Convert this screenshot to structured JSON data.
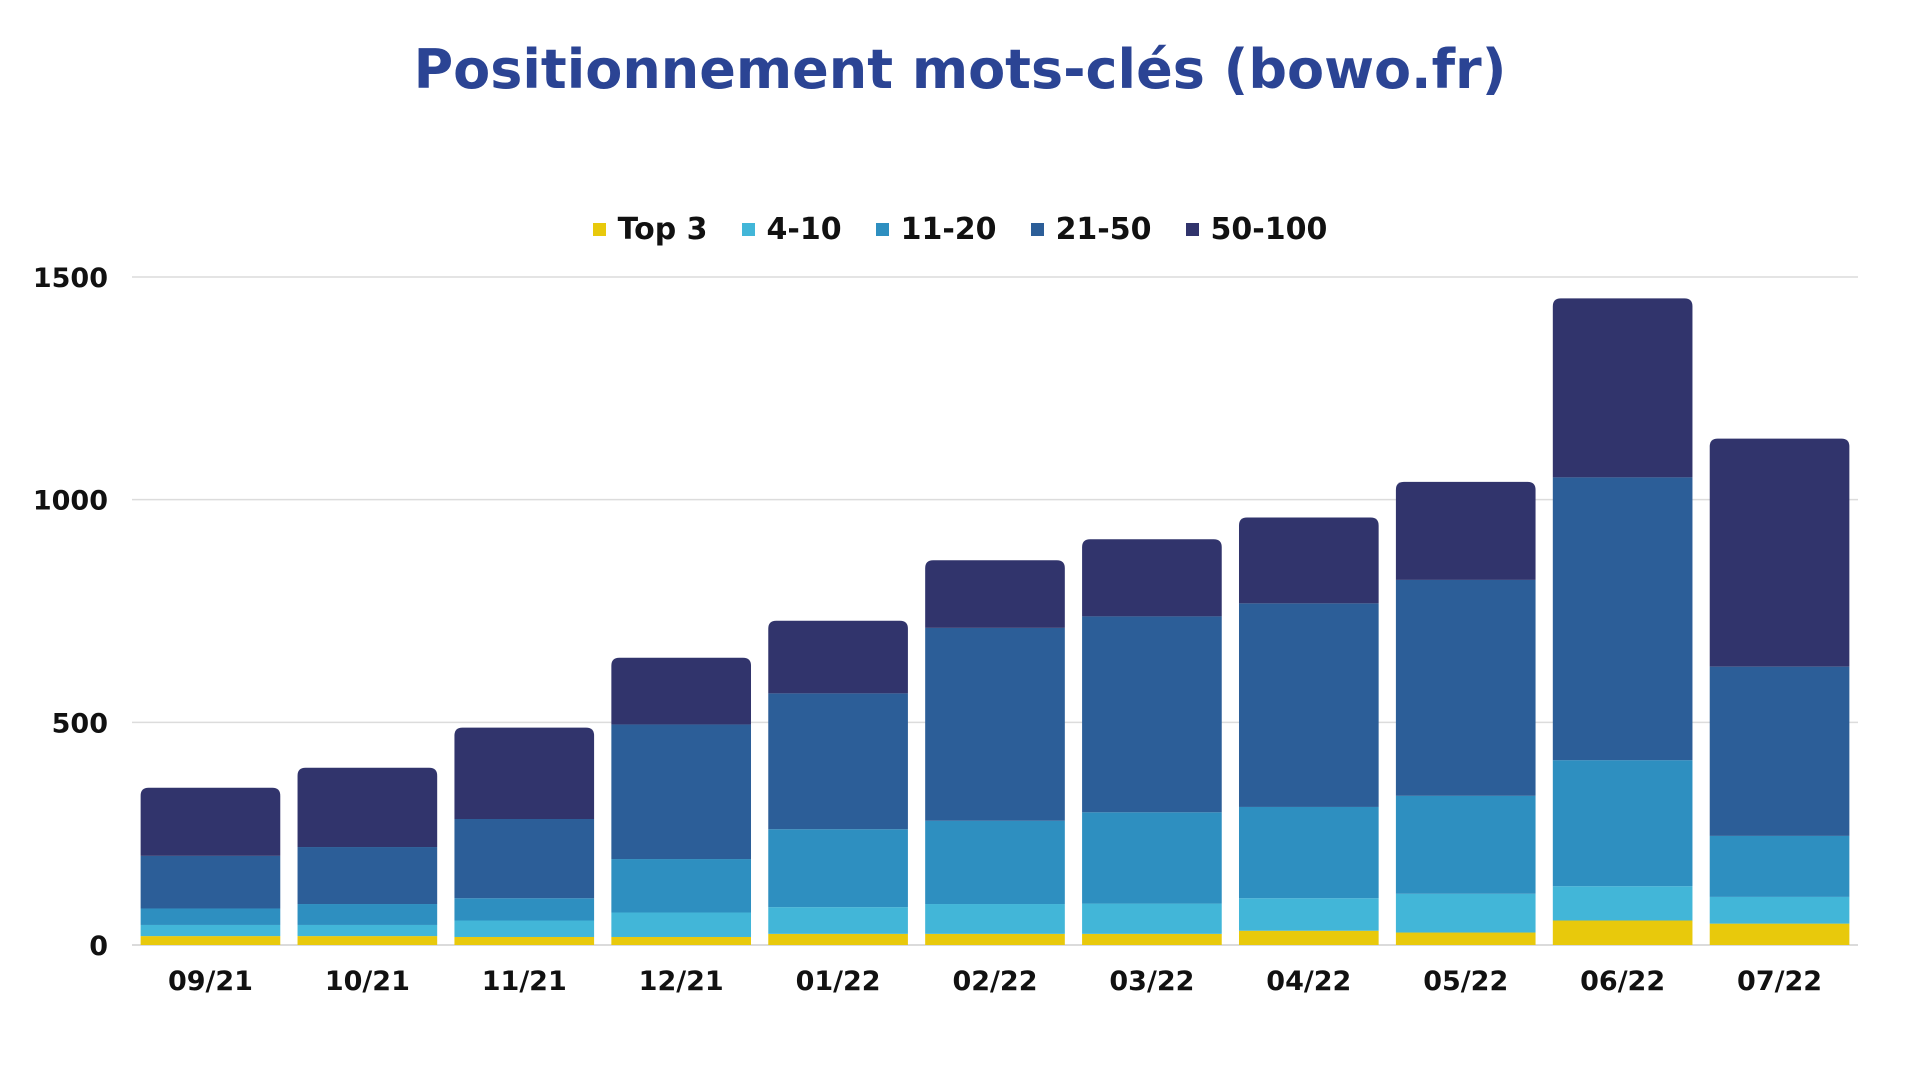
{
  "chart_data": {
    "type": "bar",
    "stacked": true,
    "title": "Positionnement mots-clés (bowo.fr)",
    "xlabel": "",
    "ylabel": "",
    "ylim": [
      0,
      1500
    ],
    "yticks": [
      0,
      500,
      1000,
      1500
    ],
    "grid": true,
    "legend_position": "top",
    "categories": [
      "09/21",
      "10/21",
      "11/21",
      "12/21",
      "01/22",
      "02/22",
      "03/22",
      "04/22",
      "05/22",
      "06/22",
      "07/22"
    ],
    "series": [
      {
        "name": "Top 3",
        "color": "#e8c90c",
        "values": [
          20,
          20,
          18,
          18,
          25,
          25,
          25,
          32,
          28,
          55,
          48
        ]
      },
      {
        "name": "4-10",
        "color": "#42b6d8",
        "values": [
          25,
          25,
          37,
          55,
          60,
          67,
          68,
          73,
          87,
          77,
          60
        ]
      },
      {
        "name": "11-20",
        "color": "#2e8fc0",
        "values": [
          37,
          47,
          50,
          120,
          175,
          187,
          205,
          205,
          220,
          283,
          137
        ]
      },
      {
        "name": "21-50",
        "color": "#2c5e98",
        "values": [
          118,
          128,
          178,
          302,
          305,
          433,
          440,
          457,
          485,
          635,
          380
        ]
      },
      {
        "name": "50-100",
        "color": "#31346c",
        "values": [
          153,
          178,
          205,
          150,
          163,
          152,
          173,
          193,
          220,
          402,
          512
        ]
      }
    ]
  }
}
